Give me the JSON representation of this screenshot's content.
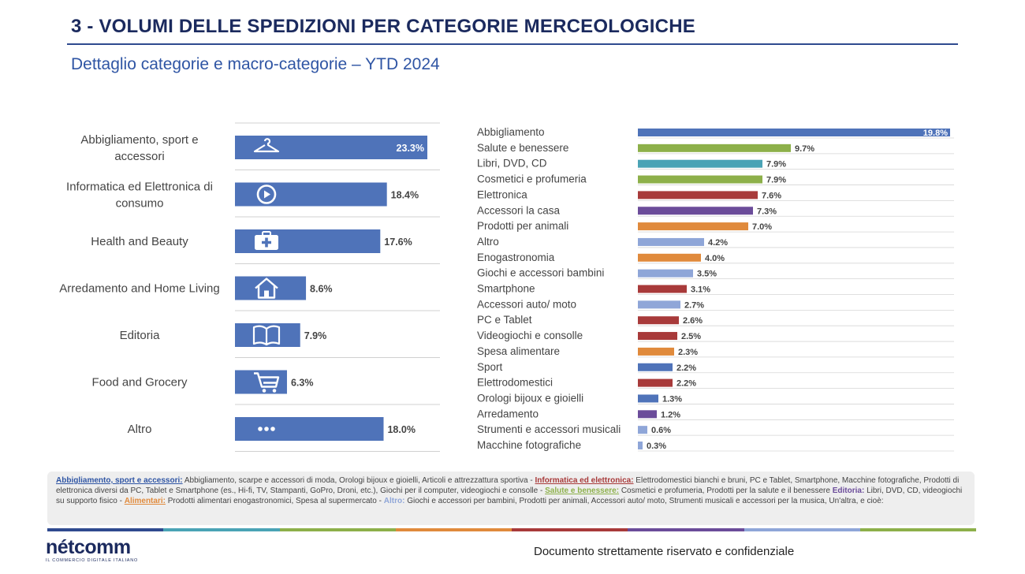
{
  "title": "3 - VOLUMI DELLE SPEDIZIONI PER CATEGORIE MERCEOLOGICHE",
  "subtitle": "Dettaglio categorie e macro-categorie – YTD 2024",
  "chart_data": [
    {
      "type": "bar",
      "orientation": "horizontal",
      "categories": [
        [
          "Abbigliamento, sport e",
          "accessori"
        ],
        [
          "Informatica ed Elettronica di",
          "consumo"
        ],
        [
          "Health and Beauty"
        ],
        [
          "Arredamento and Home Living"
        ],
        [
          "Editoria"
        ],
        [
          "Food and Grocery"
        ],
        [
          "Altro"
        ]
      ],
      "values": [
        23.3,
        18.4,
        17.6,
        8.6,
        7.9,
        6.3,
        18.0
      ],
      "value_labels": [
        "23.3%",
        "18.4%",
        "17.6%",
        "8.6%",
        "7.9%",
        "6.3%",
        "18.0%"
      ],
      "icons": [
        "hanger-icon",
        "play-circle-icon",
        "first-aid-kit-icon",
        "house-icon",
        "open-book-icon",
        "shopping-cart-icon",
        "ellipsis-icon"
      ],
      "bar_color": "#4f73b9",
      "grid": false
    },
    {
      "type": "bar",
      "orientation": "horizontal",
      "categories": [
        "Abbigliamento",
        "Salute e benessere",
        "Libri, DVD, CD",
        "Cosmetici e profumeria",
        "Elettronica",
        "Accessori la casa",
        "Prodotti per animali",
        "Altro",
        "Enogastronomia",
        "Giochi e accessori  bambini",
        "Smartphone",
        "Accessori auto/ moto",
        "PC e Tablet",
        "Videogiochi e consolle",
        "Spesa alimentare",
        "Sport",
        "Elettrodomestici",
        "Orologi bijoux e gioielli",
        "Arredamento",
        "Strumenti e accessori musicali",
        "Macchine fotografiche"
      ],
      "values": [
        19.8,
        9.7,
        7.9,
        7.9,
        7.6,
        7.3,
        7.0,
        4.2,
        4.0,
        3.5,
        3.1,
        2.7,
        2.6,
        2.5,
        2.3,
        2.2,
        2.2,
        1.3,
        1.2,
        0.6,
        0.3
      ],
      "value_labels": [
        "19.8%",
        "9.7%",
        "7.9%",
        "7.9%",
        "7.6%",
        "7.3%",
        "7.0%",
        "4.2%",
        "4.0%",
        "3.5%",
        "3.1%",
        "2.7%",
        "2.6%",
        "2.5%",
        "2.3%",
        "2.2%",
        "2.2%",
        "1.3%",
        "1.2%",
        "0.6%",
        "0.3%"
      ],
      "colors": [
        "#4f73b9",
        "#8db04a",
        "#4aa3b5",
        "#8db04a",
        "#a83a3a",
        "#6b4c9a",
        "#e08a3c",
        "#8fa6d8",
        "#e08a3c",
        "#8fa6d8",
        "#a83a3a",
        "#8fa6d8",
        "#a83a3a",
        "#a83a3a",
        "#e08a3c",
        "#4f73b9",
        "#a83a3a",
        "#4f73b9",
        "#6b4c9a",
        "#8fa6d8",
        "#8fa6d8"
      ],
      "grid": false
    }
  ],
  "footnote": {
    "k1": "Abbigliamento, sport e accessori:",
    "t1": " Abbigliamento, scarpe e accessori di moda, Orologi bijoux e gioielli, Articoli e attrezzattura sportiva - ",
    "k2": "Informatica ed elettronica:",
    "t2": " Elettrodomestici bianchi e bruni, PC e Tablet, Smartphone, Macchine fotografiche, Prodotti di elettronica diversi da PC, Tablet e Smartphone (es., Hi-fi, TV, Stampanti, GoPro, Droni, etc.), Giochi per il computer, videogiochi e consolle - ",
    "k3": "Salute e benessere:",
    "t3": " Cosmetici e profumeria, Prodotti per la salute e il benessere ",
    "k4": "Editoria:",
    "t4": " Libri, DVD, CD, videogiochi su supporto fisico - ",
    "k5": "Alimentari:",
    "t5": " Prodotti alimentari enogastronomici, Spesa al supermercato - ",
    "k6": "Altro:",
    "t6": " Giochi e accessori per bambini, Prodotti per animali, Accessori auto/ moto, Strumenti musicali e accessori per la musica, Un'altra, e cioè:"
  },
  "colorbar": [
    "#2f4a8f",
    "#4aa3b5",
    "#8db04a",
    "#e08a3c",
    "#a83a3a",
    "#6b4c9a",
    "#8fa6d8",
    "#8db04a"
  ],
  "logo": {
    "word": "nétcomm",
    "tagline": "IL COMMERCIO DIGITALE ITALIANO"
  },
  "confidential": "Documento strettamente riservato e confidenziale"
}
